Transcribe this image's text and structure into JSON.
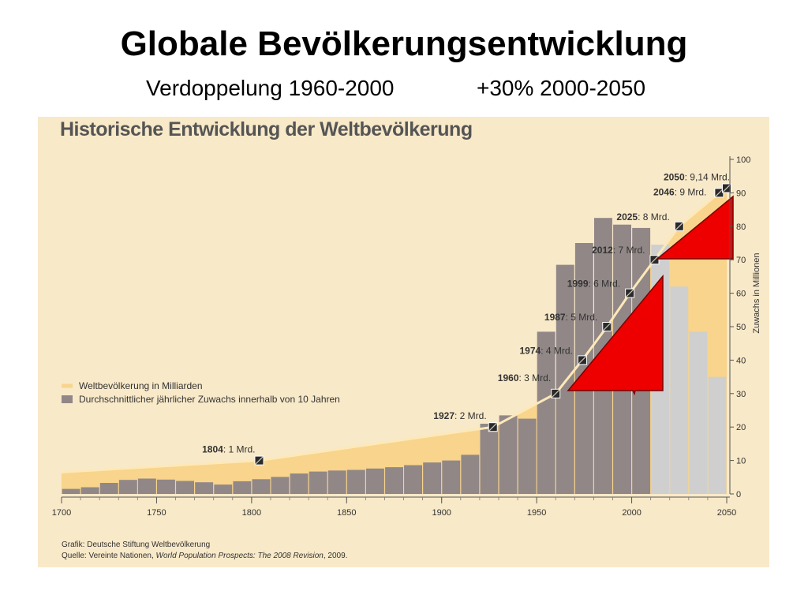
{
  "slide": {
    "title": "Globale Bevölkerungsentwicklung",
    "subtitle_left": "Verdoppelung 1960-2000",
    "subtitle_right": "+30% 2000-2050"
  },
  "colors": {
    "panel_bg": "#f8e9c8",
    "population_band": "#f8d48c",
    "population_line": "#fde8b8",
    "bar_historic": "#918787",
    "bar_projection": "#cfcfcf",
    "arrow_red": "#ee0000"
  },
  "chart_data": {
    "type": "bar",
    "title": "Historische Entwicklung der Weltbevölkerung",
    "ylabel": "Zuwachs in Millionen",
    "xlim": [
      1700,
      2050
    ],
    "ylim": [
      0,
      100
    ],
    "x_ticks": [
      "1700",
      "1750",
      "1800",
      "1850",
      "1900",
      "1950",
      "2000",
      "2050"
    ],
    "y_ticks": [
      "0",
      "10",
      "20",
      "30",
      "40",
      "50",
      "60",
      "70",
      "80",
      "90",
      "100"
    ],
    "grid": false,
    "legend_position": "left",
    "legend": [
      "Weltbevölkerung in Milliarden",
      "Durchschnittlicher jährlicher Zuwachs innerhalb von 10 Jahren"
    ],
    "series": [
      {
        "name": "Durchschnittlicher jährlicher Zuwachs innerhalb von 10 Jahren",
        "type": "bar",
        "decades": [
          1700,
          1710,
          1720,
          1730,
          1740,
          1750,
          1760,
          1770,
          1780,
          1790,
          1800,
          1810,
          1820,
          1830,
          1840,
          1850,
          1860,
          1870,
          1880,
          1890,
          1900,
          1910,
          1920,
          1930,
          1940,
          1950,
          1960,
          1970,
          1980,
          1990,
          2000,
          2010,
          2020,
          2030,
          2040
        ],
        "values": [
          1.5,
          2,
          3.3,
          4.2,
          4.6,
          4.3,
          3.9,
          3.5,
          2.8,
          3.8,
          4.4,
          5.1,
          6.1,
          6.7,
          7,
          7.2,
          7.6,
          8,
          8.6,
          9.4,
          10,
          11.7,
          21,
          23.5,
          22.5,
          48.5,
          68.5,
          75,
          82.5,
          80.5,
          79.5,
          74.5,
          62,
          48.5,
          35
        ],
        "projection_from": 2010
      },
      {
        "name": "Weltbevölkerung in Milliarden",
        "type": "line",
        "milestones": [
          {
            "year": 1804,
            "billion": 1,
            "label_year": "1804",
            "label_rest": ": 1 Mrd."
          },
          {
            "year": 1927,
            "billion": 2,
            "label_year": "1927",
            "label_rest": ": 2 Mrd."
          },
          {
            "year": 1960,
            "billion": 3,
            "label_year": "1960",
            "label_rest": ": 3 Mrd."
          },
          {
            "year": 1974,
            "billion": 4,
            "label_year": "1974",
            "label_rest": ": 4 Mrd."
          },
          {
            "year": 1987,
            "billion": 5,
            "label_year": "1987",
            "label_rest": ": 5 Mrd."
          },
          {
            "year": 1999,
            "billion": 6,
            "label_year": "1999",
            "label_rest": ": 6 Mrd."
          },
          {
            "year": 2012,
            "billion": 7,
            "label_year": "2012",
            "label_rest": ": 7 Mrd."
          },
          {
            "year": 2025,
            "billion": 8,
            "label_year": "2025",
            "label_rest": ": 8 Mrd."
          },
          {
            "year": 2046,
            "billion": 9,
            "label_year": "2046",
            "label_rest": ": 9 Mrd."
          },
          {
            "year": 2050,
            "billion": 9.14,
            "label_year": "2050",
            "label_rest": ": 9,14 Mrd."
          }
        ]
      }
    ],
    "source_lines": [
      {
        "text": "Grafik: Deutsche Stiftung Weltbevölkerung"
      },
      {
        "text": "Quelle: Vereinte Nationen, ",
        "italic": "World Population Prospects: The 2008 Revision",
        "suffix": ", 2009."
      }
    ]
  }
}
